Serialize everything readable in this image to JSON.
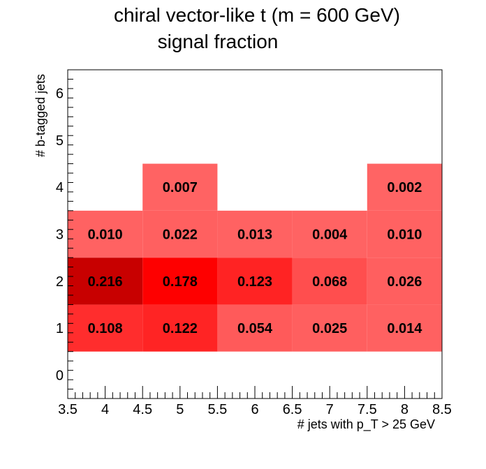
{
  "chart_data": {
    "type": "heatmap",
    "title": "chiral vector-like t (m = 600 GeV)",
    "subtitle": "signal fraction",
    "xlabel": "# jets with p_T > 25 GeV",
    "ylabel": "# b-tagged jets",
    "xlim": [
      3.5,
      8.5
    ],
    "ylim": [
      -0.5,
      6.5
    ],
    "x_ticks": [
      "3.5",
      "4",
      "4.5",
      "5",
      "5.5",
      "6",
      "6.5",
      "7",
      "7.5",
      "8",
      "8.5"
    ],
    "y_ticks": [
      "0",
      "1",
      "2",
      "3",
      "4",
      "5",
      "6"
    ],
    "grid": false,
    "cells": [
      {
        "x": 4,
        "y": 1,
        "value": 0.108,
        "label": "0.108"
      },
      {
        "x": 5,
        "y": 1,
        "value": 0.122,
        "label": "0.122"
      },
      {
        "x": 6,
        "y": 1,
        "value": 0.054,
        "label": "0.054"
      },
      {
        "x": 7,
        "y": 1,
        "value": 0.025,
        "label": "0.025"
      },
      {
        "x": 8,
        "y": 1,
        "value": 0.014,
        "label": "0.014"
      },
      {
        "x": 4,
        "y": 2,
        "value": 0.216,
        "label": "0.216"
      },
      {
        "x": 5,
        "y": 2,
        "value": 0.178,
        "label": "0.178"
      },
      {
        "x": 6,
        "y": 2,
        "value": 0.123,
        "label": "0.123"
      },
      {
        "x": 7,
        "y": 2,
        "value": 0.068,
        "label": "0.068"
      },
      {
        "x": 8,
        "y": 2,
        "value": 0.026,
        "label": "0.026"
      },
      {
        "x": 4,
        "y": 3,
        "value": 0.01,
        "label": "0.010"
      },
      {
        "x": 5,
        "y": 3,
        "value": 0.022,
        "label": "0.022"
      },
      {
        "x": 6,
        "y": 3,
        "value": 0.013,
        "label": "0.013"
      },
      {
        "x": 7,
        "y": 3,
        "value": 0.004,
        "label": "0.004"
      },
      {
        "x": 8,
        "y": 3,
        "value": 0.01,
        "label": "0.010"
      },
      {
        "x": 5,
        "y": 4,
        "value": 0.007,
        "label": "0.007"
      },
      {
        "x": 8,
        "y": 4,
        "value": 0.002,
        "label": "0.002"
      }
    ],
    "colors": {
      "cell_light": "#ff6464",
      "cell_mid": "#ff2a2a",
      "cell_bright": "#ff0000",
      "cell_dark": "#c80000",
      "axis": "#000000",
      "background": "#ffffff"
    }
  }
}
